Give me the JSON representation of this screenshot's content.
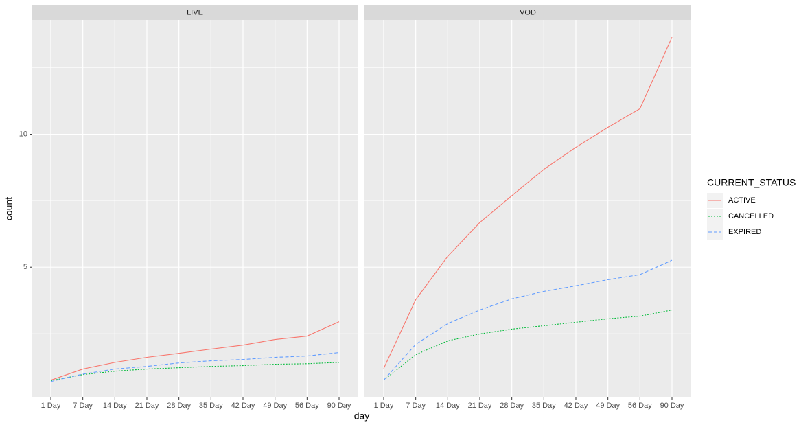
{
  "chart_data": [
    {
      "type": "line",
      "title": "LIVE",
      "x_label": "day",
      "y_label": "count",
      "legend_title": "CURRENT_STATUS",
      "categories": [
        "1 Day",
        "7 Day",
        "14 Day",
        "21 Day",
        "28 Day",
        "35 Day",
        "42 Day",
        "49 Day",
        "56 Day",
        "90 Day"
      ],
      "series": [
        {
          "name": "ACTIVE",
          "color": "#F8766D",
          "linetype": "solid",
          "values": [
            0.75,
            1.17,
            1.42,
            1.61,
            1.76,
            1.92,
            2.07,
            2.28,
            2.41,
            2.95
          ]
        },
        {
          "name": "CANCELLED",
          "color": "#00BA38",
          "linetype": "dotted",
          "values": [
            0.73,
            0.96,
            1.09,
            1.17,
            1.22,
            1.27,
            1.3,
            1.35,
            1.37,
            1.42
          ]
        },
        {
          "name": "EXPIRED",
          "color": "#619CFF",
          "linetype": "dashed",
          "values": [
            0.7,
            0.98,
            1.17,
            1.27,
            1.4,
            1.48,
            1.53,
            1.61,
            1.66,
            1.79
          ]
        }
      ],
      "ylim": [
        0.1,
        14.3
      ],
      "yticks": [
        5,
        10
      ],
      "minor_yticks": [
        2.5,
        7.5,
        12.5
      ],
      "grid": true
    },
    {
      "type": "line",
      "title": "VOD",
      "categories": [
        "1 Day",
        "7 Day",
        "14 Day",
        "21 Day",
        "28 Day",
        "35 Day",
        "42 Day",
        "49 Day",
        "56 Day",
        "90 Day"
      ],
      "series": [
        {
          "color": "#F8766D",
          "linetype": "solid",
          "values": [
            1.19,
            3.78,
            5.41,
            6.68,
            7.69,
            8.68,
            9.51,
            10.26,
            10.96,
            13.65
          ]
        },
        {
          "color": "#00BA38",
          "linetype": "dotted",
          "values": [
            0.75,
            1.71,
            2.23,
            2.49,
            2.67,
            2.8,
            2.93,
            3.06,
            3.16,
            3.39
          ]
        },
        {
          "color": "#619CFF",
          "linetype": "dashed",
          "values": [
            0.75,
            2.1,
            2.88,
            3.39,
            3.81,
            4.09,
            4.3,
            4.53,
            4.72,
            5.26
          ]
        }
      ],
      "ylim": [
        0.1,
        14.3
      ],
      "yticks": [
        5,
        10
      ],
      "minor_yticks": [
        2.5,
        7.5,
        12.5
      ],
      "grid": true
    }
  ]
}
